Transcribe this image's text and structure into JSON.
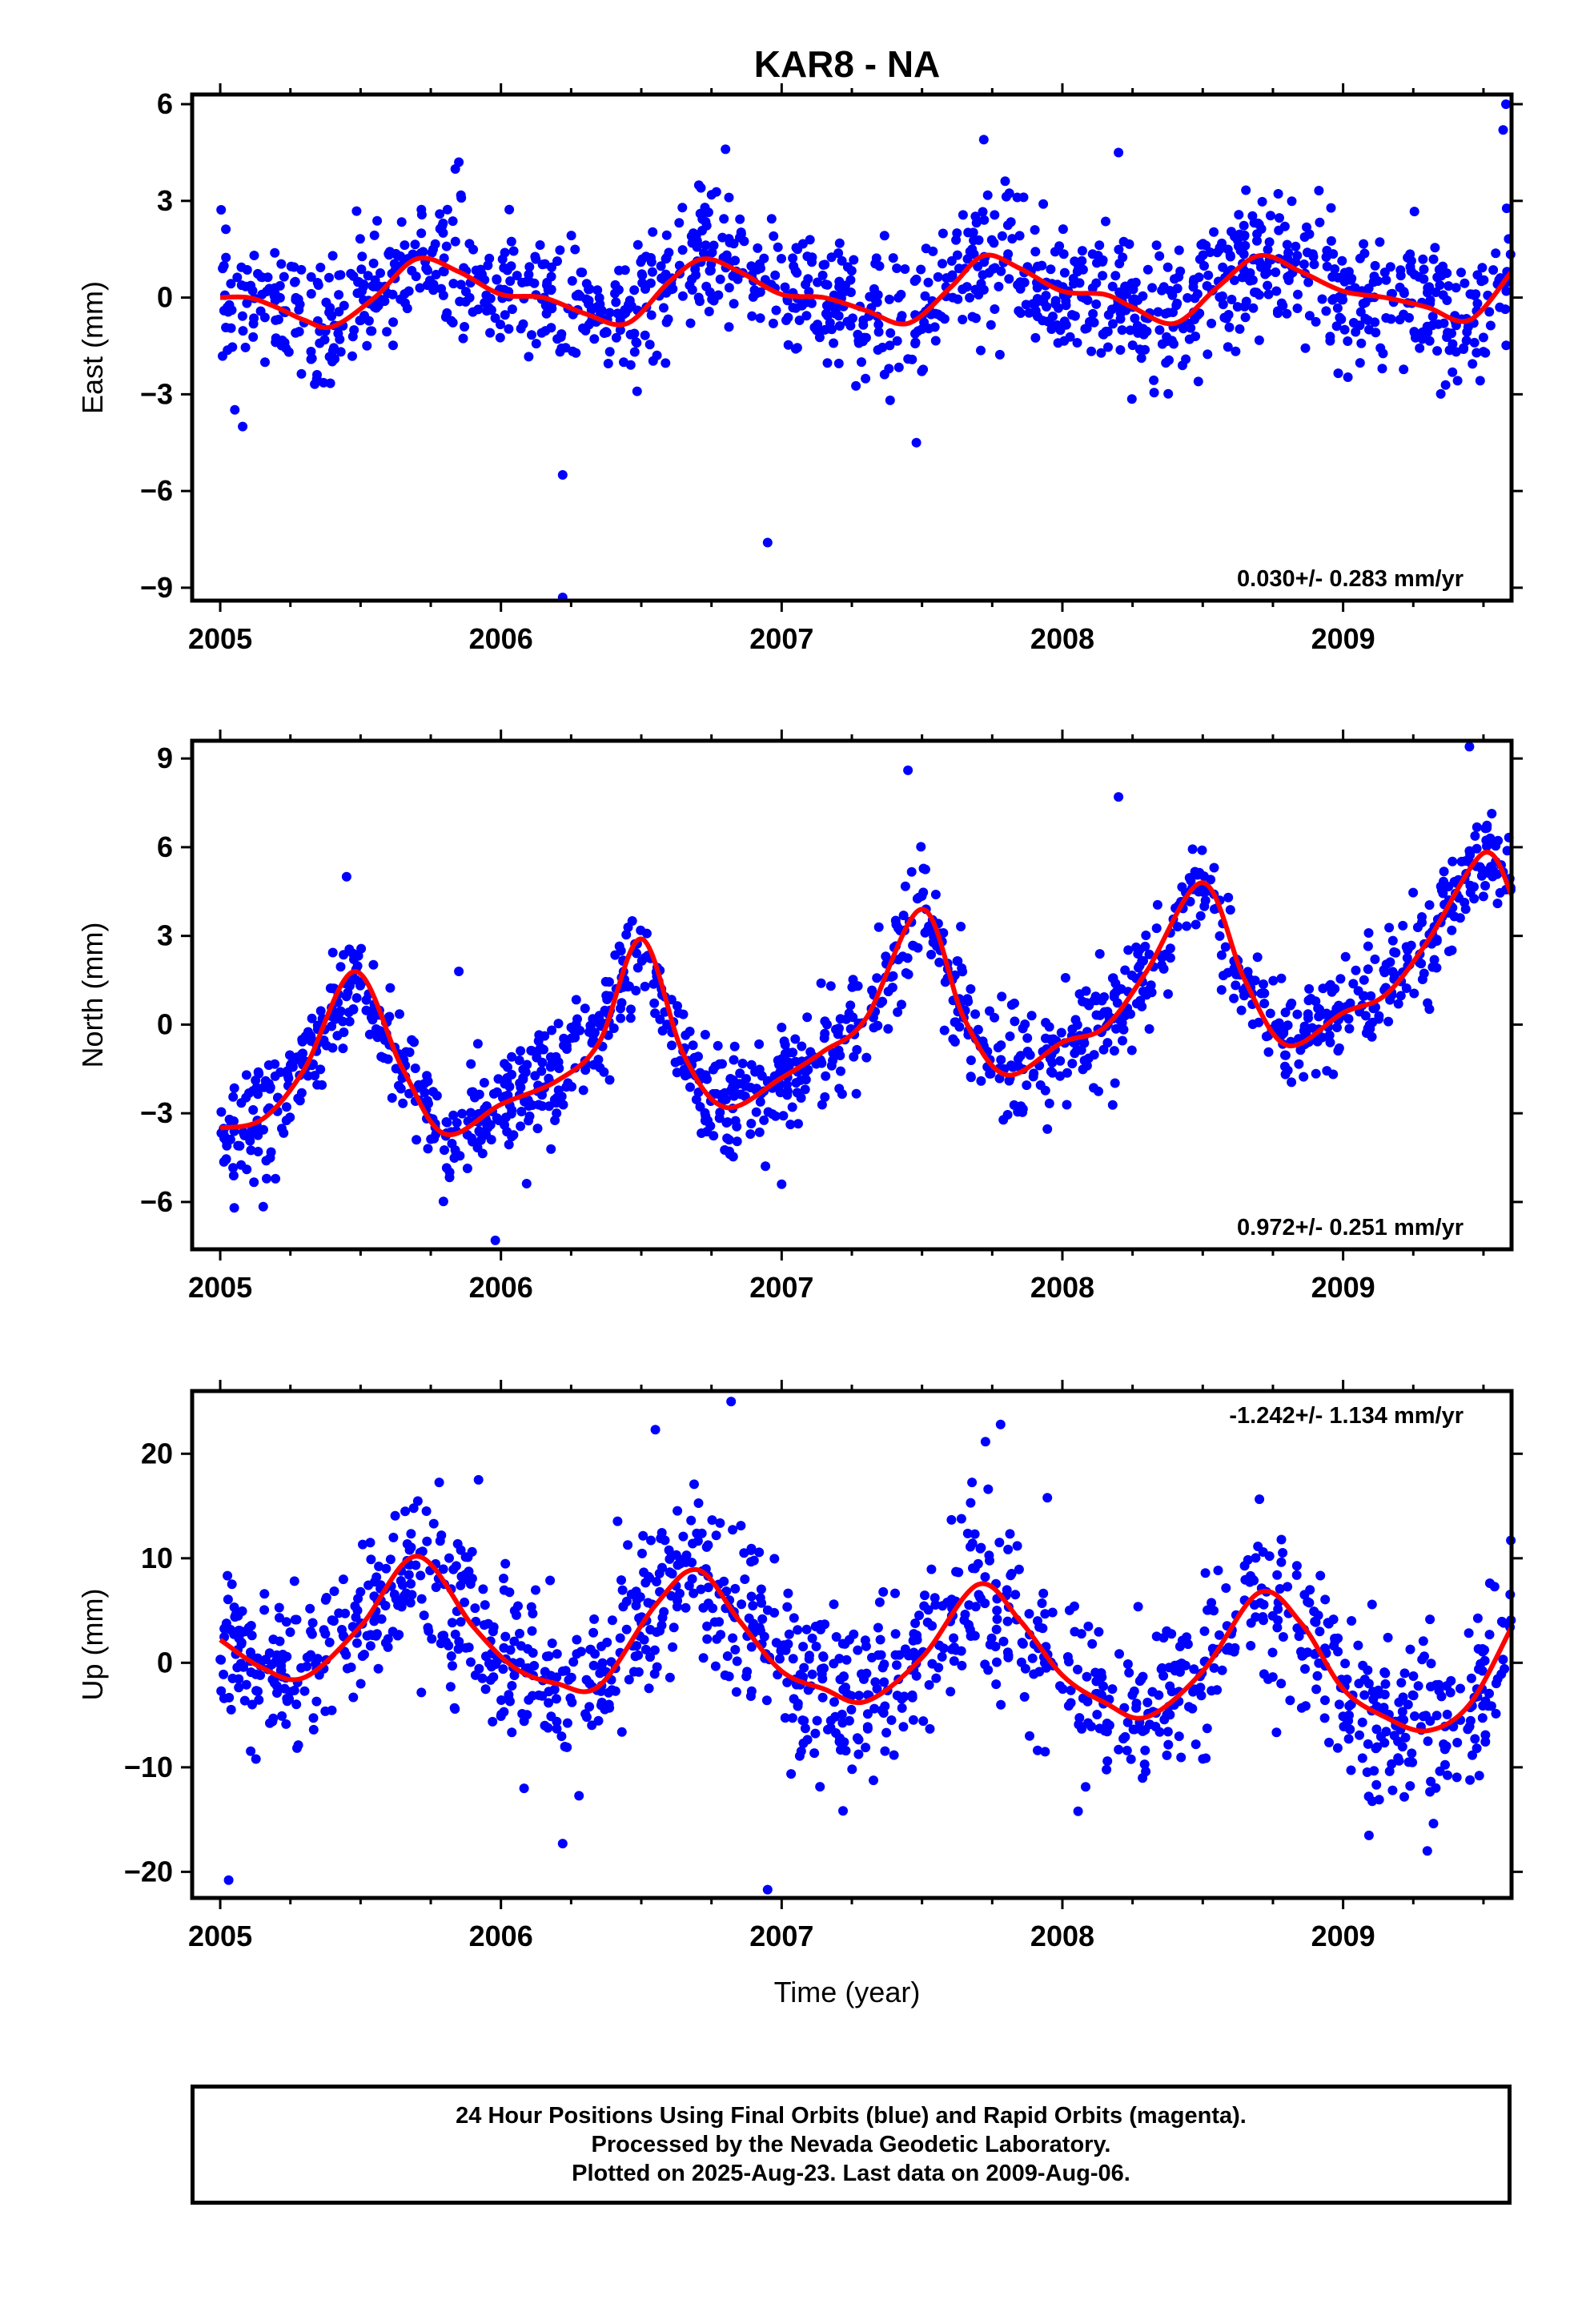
{
  "title": "KAR8 - NA",
  "x_tick_labels": [
    "2005",
    "2006",
    "2007",
    "2008",
    "2009"
  ],
  "xlabel": "Time (year)",
  "footer": {
    "line1": "24 Hour Positions Using Final Orbits (blue) and Rapid Orbits (magenta).",
    "line2": "Processed by the Nevada Geodetic Laboratory.",
    "line3": "Plotted on 2025-Aug-23. Last data on 2009-Aug-06."
  },
  "colors": {
    "points": "#0000ff",
    "fit": "#ff0000",
    "frame": "#000000"
  },
  "chart_data": [
    {
      "type": "scatter",
      "ylabel": "East (mm)",
      "xlim": [
        2004.9,
        2009.6
      ],
      "ylim": [
        -9.4,
        6.3
      ],
      "yticks": [
        6,
        3,
        0,
        -3,
        -6,
        -9
      ],
      "ytick_labels": [
        "6",
        "3",
        "0",
        "−3",
        "−6",
        "−9"
      ],
      "xticks": [
        2005,
        2006,
        2007,
        2008,
        2009
      ],
      "rate_label": "0.030+/- 0.283 mm/yr",
      "rate_position": "bottom-right",
      "series": [
        {
          "kind": "points",
          "x_range": [
            2005.0,
            2009.6
          ],
          "scatter_sd": 1.0,
          "count": 1300
        },
        {
          "kind": "fit_line",
          "x": [
            2005.0,
            2005.1,
            2005.2,
            2005.3,
            2005.4,
            2005.55,
            2005.7,
            2005.85,
            2006.0,
            2006.15,
            2006.3,
            2006.45,
            2006.6,
            2006.72,
            2006.85,
            2007.0,
            2007.15,
            2007.3,
            2007.45,
            2007.6,
            2007.72,
            2007.85,
            2008.0,
            2008.15,
            2008.25,
            2008.4,
            2008.55,
            2008.7,
            2008.85,
            2009.0,
            2009.15,
            2009.3,
            2009.45,
            2009.6
          ],
          "y": [
            0.0,
            0.0,
            -0.3,
            -0.7,
            -0.9,
            0.0,
            1.2,
            0.8,
            0.1,
            0.0,
            -0.5,
            -0.8,
            0.5,
            1.2,
            0.8,
            0.1,
            0.0,
            -0.4,
            -0.8,
            0.3,
            1.3,
            0.9,
            0.2,
            0.1,
            -0.3,
            -0.8,
            0.3,
            1.3,
            0.8,
            0.2,
            0.0,
            -0.3,
            -0.7,
            0.8
          ]
        }
      ],
      "outliers": [
        {
          "x": 2005.08,
          "y": -4.0
        },
        {
          "x": 2006.22,
          "y": -5.5
        },
        {
          "x": 2006.22,
          "y": -9.3
        },
        {
          "x": 2006.95,
          "y": -7.6
        },
        {
          "x": 2007.72,
          "y": 4.9
        },
        {
          "x": 2005.85,
          "y": 4.2
        },
        {
          "x": 2009.58,
          "y": 6.0
        },
        {
          "x": 2009.57,
          "y": 5.2
        },
        {
          "x": 2008.2,
          "y": 4.5
        },
        {
          "x": 2006.8,
          "y": 4.6
        },
        {
          "x": 2007.48,
          "y": -4.5
        }
      ]
    },
    {
      "type": "scatter",
      "ylabel": "North (mm)",
      "xlim": [
        2004.9,
        2009.6
      ],
      "ylim": [
        -7.6,
        9.6
      ],
      "yticks": [
        9,
        6,
        3,
        0,
        -3,
        -6
      ],
      "ytick_labels": [
        "9",
        "6",
        "3",
        "0",
        "−3",
        "−6"
      ],
      "xticks": [
        2005,
        2006,
        2007,
        2008,
        2009
      ],
      "rate_label": "0.972+/- 0.251 mm/yr",
      "rate_position": "bottom-right",
      "series": [
        {
          "kind": "points",
          "x_range": [
            2005.0,
            2009.6
          ],
          "scatter_sd": 0.9,
          "count": 1300
        },
        {
          "kind": "fit_line",
          "x": [
            2005.0,
            2005.15,
            2005.3,
            2005.48,
            2005.65,
            2005.8,
            2006.0,
            2006.2,
            2006.35,
            2006.5,
            2006.65,
            2006.8,
            2007.0,
            2007.15,
            2007.3,
            2007.5,
            2007.65,
            2007.8,
            2008.0,
            2008.15,
            2008.3,
            2008.5,
            2008.65,
            2008.8,
            2009.0,
            2009.15,
            2009.3,
            2009.5,
            2009.6
          ],
          "y": [
            -3.5,
            -3.2,
            -1.5,
            1.8,
            -1.5,
            -3.7,
            -2.7,
            -1.9,
            -0.6,
            2.9,
            -1.0,
            -2.8,
            -1.8,
            -0.9,
            0.2,
            3.9,
            0.2,
            -1.7,
            -0.6,
            -0.1,
            1.8,
            4.8,
            1.5,
            -0.7,
            0.4,
            1.0,
            2.8,
            5.8,
            4.4
          ]
        }
      ],
      "outliers": [
        {
          "x": 2005.05,
          "y": -6.2
        },
        {
          "x": 2005.45,
          "y": 5.0
        },
        {
          "x": 2005.85,
          "y": 1.8
        },
        {
          "x": 2005.98,
          "y": -7.3
        },
        {
          "x": 2007.45,
          "y": 8.6
        },
        {
          "x": 2009.45,
          "y": 9.4
        },
        {
          "x": 2007.0,
          "y": -5.4
        },
        {
          "x": 2008.2,
          "y": 7.7
        }
      ]
    },
    {
      "type": "scatter",
      "ylabel": "Up (mm)",
      "xlim": [
        2004.9,
        2009.6
      ],
      "ylim": [
        -22.5,
        26.0
      ],
      "yticks": [
        20,
        10,
        0,
        -10,
        -20
      ],
      "ytick_labels": [
        "20",
        "10",
        "0",
        "−10",
        "−20"
      ],
      "xticks": [
        2005,
        2006,
        2007,
        2008,
        2009
      ],
      "xlabel": "Time (year)",
      "rate_label": "-1.242+/- 1.134 mm/yr",
      "rate_position": "top-right",
      "series": [
        {
          "kind": "points",
          "x_range": [
            2005.0,
            2009.6
          ],
          "scatter_sd": 4.0,
          "count": 1300
        },
        {
          "kind": "fit_line",
          "x": [
            2005.0,
            2005.15,
            2005.3,
            2005.5,
            2005.7,
            2005.9,
            2006.05,
            2006.2,
            2006.35,
            2006.55,
            2006.7,
            2006.85,
            2007.0,
            2007.15,
            2007.3,
            2007.5,
            2007.7,
            2007.85,
            2008.0,
            2008.15,
            2008.3,
            2008.5,
            2008.7,
            2008.85,
            2009.0,
            2009.15,
            2009.3,
            2009.45,
            2009.6
          ],
          "y": [
            2.2,
            -0.5,
            -1.4,
            3.5,
            10.2,
            3.5,
            -0.5,
            -2.0,
            -2.2,
            5.5,
            8.9,
            4.0,
            -0.8,
            -2.5,
            -3.7,
            0.5,
            7.5,
            4.0,
            -1.2,
            -3.8,
            -5.2,
            -0.8,
            6.7,
            3.8,
            -2.5,
            -5.2,
            -6.5,
            -4.0,
            3.4
          ]
        }
      ],
      "outliers": [
        {
          "x": 2005.03,
          "y": -20.8
        },
        {
          "x": 2006.22,
          "y": -17.3
        },
        {
          "x": 2006.95,
          "y": -21.7
        },
        {
          "x": 2006.82,
          "y": 25.0
        },
        {
          "x": 2007.78,
          "y": 22.8
        },
        {
          "x": 2006.55,
          "y": 22.3
        },
        {
          "x": 2009.3,
          "y": -18.0
        },
        {
          "x": 2005.92,
          "y": 17.5
        }
      ]
    }
  ]
}
